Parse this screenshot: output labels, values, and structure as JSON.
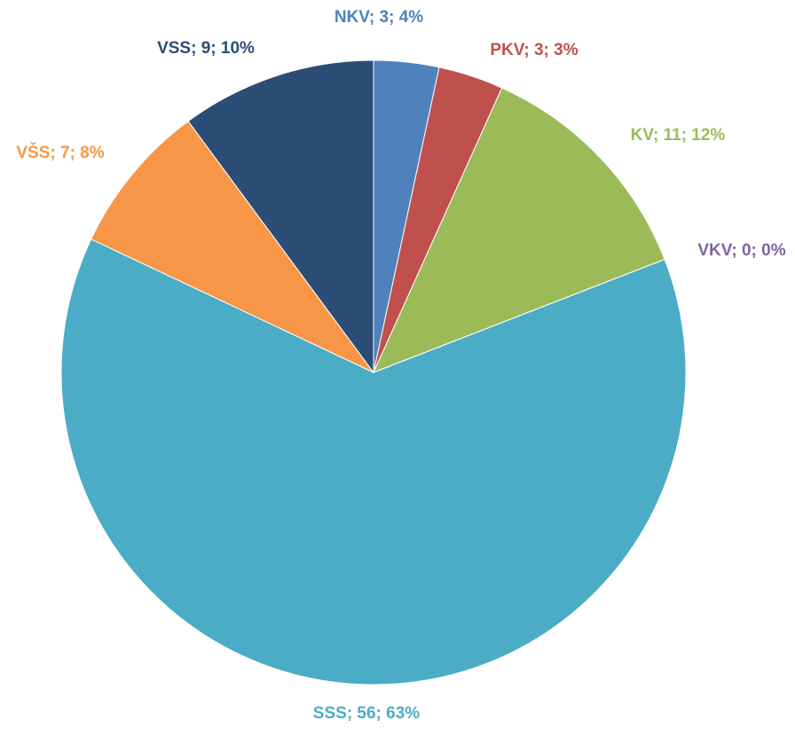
{
  "chart_data": {
    "type": "pie",
    "values": [
      3,
      3,
      11,
      0,
      56,
      7,
      9
    ],
    "value_labels": [
      "NKV; 3; 4%",
      "PKV; 3; 3%",
      "KV; 11; 12%",
      "VKV; 0; 0%",
      "SSS; 56; 63%",
      "VŠS; 7; 8%",
      "VSS; 9; 10%"
    ],
    "colors": [
      "#4f81bd",
      "#c0504d",
      "#9bbb59",
      "#8064a2",
      "#4bacc6",
      "#f79646",
      "#2c4d75"
    ]
  }
}
